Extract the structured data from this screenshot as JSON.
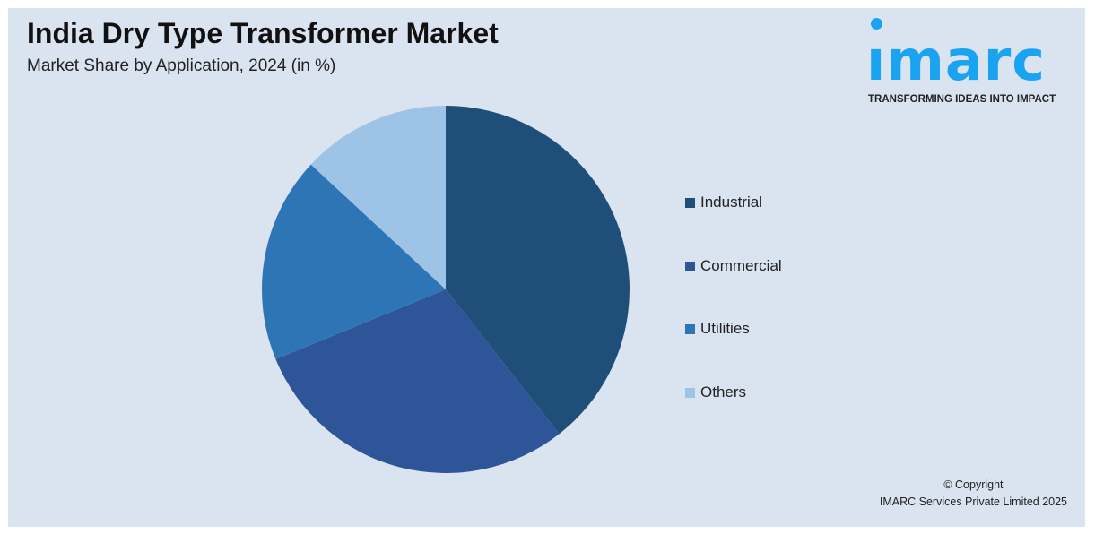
{
  "title": "India Dry Type Transformer Market",
  "subtitle": "Market Share by Application, 2024 (in %)",
  "logo": {
    "word": "imarc",
    "tagline": "TRANSFORMING IDEAS INTO IMPACT",
    "color": "#1aa3f0"
  },
  "copyright": {
    "line1": "© Copyright",
    "line2": "IMARC Services Private Limited 2025"
  },
  "chart_data": {
    "type": "pie",
    "title": "India Dry Type Transformer Market",
    "subtitle": "Market Share by Application, 2024 (in %)",
    "categories": [
      "Industrial",
      "Commercial",
      "Utilities",
      "Others"
    ],
    "values": [
      39.4,
      29.4,
      18.1,
      13.1
    ],
    "colors": [
      "#1f4e79",
      "#2e5597",
      "#2e75b6",
      "#9dc3e6"
    ],
    "start_angle": "12 o'clock, clockwise",
    "legend": "right",
    "data_labels": false
  }
}
